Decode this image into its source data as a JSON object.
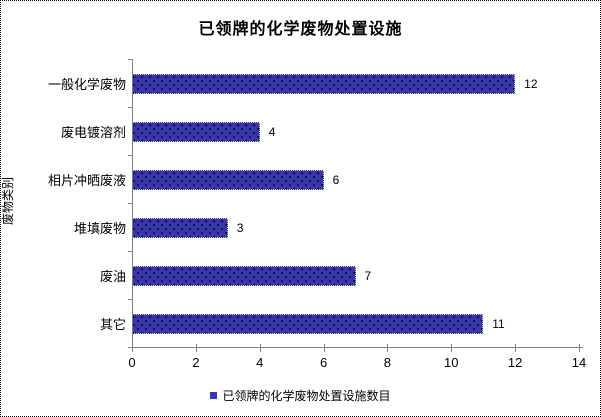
{
  "chart_data": {
    "type": "bar",
    "orientation": "horizontal",
    "title": "已领牌的化学废物处置设施",
    "ylabel": "废物类别",
    "xlabel": "",
    "categories": [
      "一般化学废物",
      "废电镀溶剂",
      "相片冲晒废液",
      "堆填废物",
      "废油",
      "其它"
    ],
    "values": [
      12,
      4,
      6,
      3,
      7,
      11
    ],
    "data_labels": [
      "12",
      "4",
      "6",
      "3",
      "7",
      "11"
    ],
    "xlim": [
      0,
      14
    ],
    "xticks": [
      0,
      2,
      4,
      6,
      8,
      10,
      12,
      14
    ],
    "grid": false,
    "legend": [
      "已领牌的化学废物处置设施数目"
    ],
    "legend_position": "bottom",
    "colors": {
      "bar_fill": "#3737A5",
      "bar_dot_pattern": "#0D0D5E",
      "legend_marker": "#3333CC",
      "axis_line": "#808080",
      "text": "#000000",
      "background": "#FFFFFF"
    }
  }
}
